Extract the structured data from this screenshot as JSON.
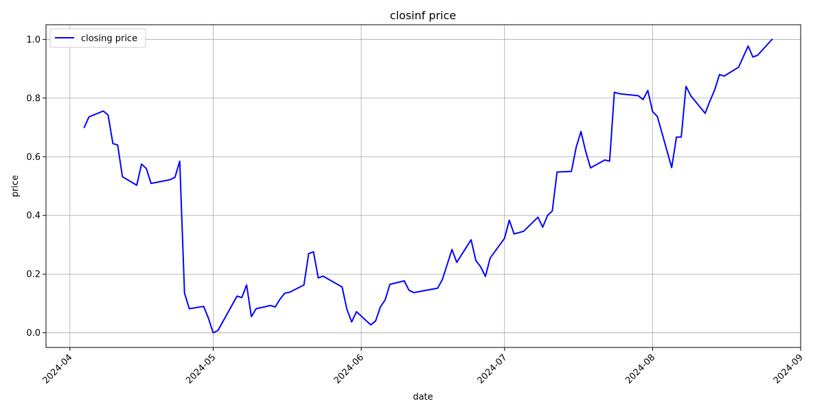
{
  "chart_data": {
    "type": "line",
    "title": "closinf price",
    "xlabel": "date",
    "ylabel": "price",
    "grid": true,
    "legend_position": "top-left",
    "x_ticks": [
      "2024-04",
      "2024-05",
      "2024-06",
      "2024-07",
      "2024-08",
      "2024-09"
    ],
    "y_ticks": [
      "0.0",
      "0.2",
      "0.4",
      "0.6",
      "0.8",
      "1.0"
    ],
    "xlim": [
      "2024-03-27",
      "2024-09-01"
    ],
    "ylim": [
      -0.05,
      1.05
    ],
    "series": [
      {
        "name": "closing price",
        "color": "#0000ff",
        "points": [
          [
            "2024-04-04",
            0.7
          ],
          [
            "2024-04-05",
            0.736
          ],
          [
            "2024-04-08",
            0.756
          ],
          [
            "2024-04-09",
            0.742
          ],
          [
            "2024-04-10",
            0.645
          ],
          [
            "2024-04-11",
            0.64
          ],
          [
            "2024-04-12",
            0.532
          ],
          [
            "2024-04-15",
            0.503
          ],
          [
            "2024-04-16",
            0.575
          ],
          [
            "2024-04-17",
            0.56
          ],
          [
            "2024-04-18",
            0.509
          ],
          [
            "2024-04-22",
            0.522
          ],
          [
            "2024-04-23",
            0.53
          ],
          [
            "2024-04-24",
            0.585
          ],
          [
            "2024-04-25",
            0.135
          ],
          [
            "2024-04-26",
            0.082
          ],
          [
            "2024-04-29",
            0.09
          ],
          [
            "2024-04-30",
            0.05
          ],
          [
            "2024-05-01",
            0.0
          ],
          [
            "2024-05-02",
            0.008
          ],
          [
            "2024-05-06",
            0.125
          ],
          [
            "2024-05-07",
            0.12
          ],
          [
            "2024-05-08",
            0.163
          ],
          [
            "2024-05-09",
            0.055
          ],
          [
            "2024-05-10",
            0.082
          ],
          [
            "2024-05-13",
            0.093
          ],
          [
            "2024-05-14",
            0.088
          ],
          [
            "2024-05-15",
            0.115
          ],
          [
            "2024-05-16",
            0.135
          ],
          [
            "2024-05-17",
            0.138
          ],
          [
            "2024-05-20",
            0.163
          ],
          [
            "2024-05-21",
            0.27
          ],
          [
            "2024-05-22",
            0.276
          ],
          [
            "2024-05-23",
            0.187
          ],
          [
            "2024-05-24",
            0.193
          ],
          [
            "2024-05-28",
            0.156
          ],
          [
            "2024-05-29",
            0.08
          ],
          [
            "2024-05-30",
            0.037
          ],
          [
            "2024-05-31",
            0.072
          ],
          [
            "2024-06-03",
            0.027
          ],
          [
            "2024-06-04",
            0.04
          ],
          [
            "2024-06-05",
            0.088
          ],
          [
            "2024-06-06",
            0.112
          ],
          [
            "2024-06-07",
            0.165
          ],
          [
            "2024-06-10",
            0.177
          ],
          [
            "2024-06-11",
            0.145
          ],
          [
            "2024-06-12",
            0.137
          ],
          [
            "2024-06-17",
            0.152
          ],
          [
            "2024-06-18",
            0.182
          ],
          [
            "2024-06-20",
            0.284
          ],
          [
            "2024-06-21",
            0.24
          ],
          [
            "2024-06-24",
            0.317
          ],
          [
            "2024-06-25",
            0.246
          ],
          [
            "2024-06-26",
            0.225
          ],
          [
            "2024-06-27",
            0.192
          ],
          [
            "2024-06-28",
            0.255
          ],
          [
            "2024-07-01",
            0.322
          ],
          [
            "2024-07-02",
            0.384
          ],
          [
            "2024-07-03",
            0.337
          ],
          [
            "2024-07-05",
            0.346
          ],
          [
            "2024-07-08",
            0.394
          ],
          [
            "2024-07-09",
            0.36
          ],
          [
            "2024-07-10",
            0.4
          ],
          [
            "2024-07-11",
            0.415
          ],
          [
            "2024-07-12",
            0.548
          ],
          [
            "2024-07-15",
            0.55
          ],
          [
            "2024-07-16",
            0.632
          ],
          [
            "2024-07-17",
            0.686
          ],
          [
            "2024-07-18",
            0.618
          ],
          [
            "2024-07-19",
            0.562
          ],
          [
            "2024-07-22",
            0.589
          ],
          [
            "2024-07-23",
            0.585
          ],
          [
            "2024-07-24",
            0.82
          ],
          [
            "2024-07-25",
            0.815
          ],
          [
            "2024-07-26",
            0.813
          ],
          [
            "2024-07-29",
            0.808
          ],
          [
            "2024-07-30",
            0.795
          ],
          [
            "2024-07-31",
            0.826
          ],
          [
            "2024-08-01",
            0.754
          ],
          [
            "2024-08-02",
            0.737
          ],
          [
            "2024-08-05",
            0.563
          ],
          [
            "2024-08-06",
            0.667
          ],
          [
            "2024-08-07",
            0.667
          ],
          [
            "2024-08-08",
            0.84
          ],
          [
            "2024-08-09",
            0.808
          ],
          [
            "2024-08-12",
            0.748
          ],
          [
            "2024-08-13",
            0.79
          ],
          [
            "2024-08-14",
            0.828
          ],
          [
            "2024-08-15",
            0.88
          ],
          [
            "2024-08-16",
            0.875
          ],
          [
            "2024-08-19",
            0.905
          ],
          [
            "2024-08-21",
            0.977
          ],
          [
            "2024-08-22",
            0.94
          ],
          [
            "2024-08-23",
            0.946
          ],
          [
            "2024-08-26",
            1.0
          ]
        ]
      }
    ]
  }
}
